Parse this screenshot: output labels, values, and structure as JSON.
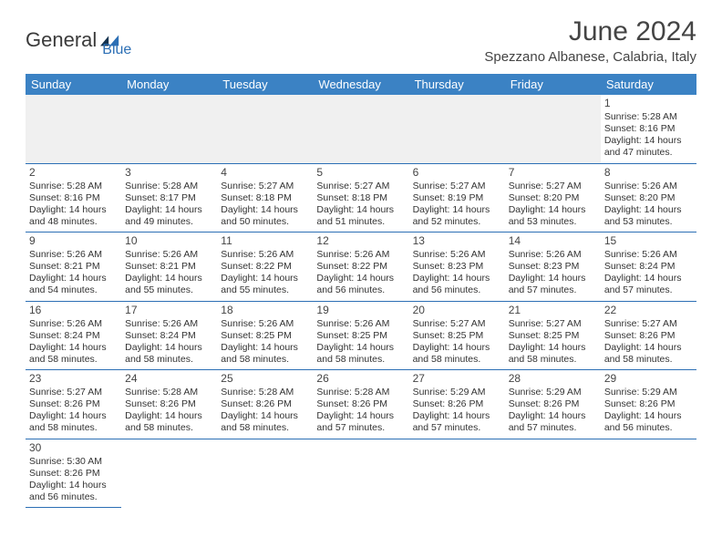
{
  "logo": {
    "text1": "General",
    "text2": "Blue"
  },
  "title": "June 2024",
  "location": "Spezzano Albanese, Calabria, Italy",
  "colors": {
    "header_bg": "#3b82c4",
    "header_text": "#ffffff",
    "border": "#2c6fb5",
    "logo_blue": "#2c6fb5",
    "text": "#333333"
  },
  "weekdays": [
    "Sunday",
    "Monday",
    "Tuesday",
    "Wednesday",
    "Thursday",
    "Friday",
    "Saturday"
  ],
  "days": {
    "1": {
      "sunrise": "5:28 AM",
      "sunset": "8:16 PM",
      "daylight": "14 hours and 47 minutes."
    },
    "2": {
      "sunrise": "5:28 AM",
      "sunset": "8:16 PM",
      "daylight": "14 hours and 48 minutes."
    },
    "3": {
      "sunrise": "5:28 AM",
      "sunset": "8:17 PM",
      "daylight": "14 hours and 49 minutes."
    },
    "4": {
      "sunrise": "5:27 AM",
      "sunset": "8:18 PM",
      "daylight": "14 hours and 50 minutes."
    },
    "5": {
      "sunrise": "5:27 AM",
      "sunset": "8:18 PM",
      "daylight": "14 hours and 51 minutes."
    },
    "6": {
      "sunrise": "5:27 AM",
      "sunset": "8:19 PM",
      "daylight": "14 hours and 52 minutes."
    },
    "7": {
      "sunrise": "5:27 AM",
      "sunset": "8:20 PM",
      "daylight": "14 hours and 53 minutes."
    },
    "8": {
      "sunrise": "5:26 AM",
      "sunset": "8:20 PM",
      "daylight": "14 hours and 53 minutes."
    },
    "9": {
      "sunrise": "5:26 AM",
      "sunset": "8:21 PM",
      "daylight": "14 hours and 54 minutes."
    },
    "10": {
      "sunrise": "5:26 AM",
      "sunset": "8:21 PM",
      "daylight": "14 hours and 55 minutes."
    },
    "11": {
      "sunrise": "5:26 AM",
      "sunset": "8:22 PM",
      "daylight": "14 hours and 55 minutes."
    },
    "12": {
      "sunrise": "5:26 AM",
      "sunset": "8:22 PM",
      "daylight": "14 hours and 56 minutes."
    },
    "13": {
      "sunrise": "5:26 AM",
      "sunset": "8:23 PM",
      "daylight": "14 hours and 56 minutes."
    },
    "14": {
      "sunrise": "5:26 AM",
      "sunset": "8:23 PM",
      "daylight": "14 hours and 57 minutes."
    },
    "15": {
      "sunrise": "5:26 AM",
      "sunset": "8:24 PM",
      "daylight": "14 hours and 57 minutes."
    },
    "16": {
      "sunrise": "5:26 AM",
      "sunset": "8:24 PM",
      "daylight": "14 hours and 58 minutes."
    },
    "17": {
      "sunrise": "5:26 AM",
      "sunset": "8:24 PM",
      "daylight": "14 hours and 58 minutes."
    },
    "18": {
      "sunrise": "5:26 AM",
      "sunset": "8:25 PM",
      "daylight": "14 hours and 58 minutes."
    },
    "19": {
      "sunrise": "5:26 AM",
      "sunset": "8:25 PM",
      "daylight": "14 hours and 58 minutes."
    },
    "20": {
      "sunrise": "5:27 AM",
      "sunset": "8:25 PM",
      "daylight": "14 hours and 58 minutes."
    },
    "21": {
      "sunrise": "5:27 AM",
      "sunset": "8:25 PM",
      "daylight": "14 hours and 58 minutes."
    },
    "22": {
      "sunrise": "5:27 AM",
      "sunset": "8:26 PM",
      "daylight": "14 hours and 58 minutes."
    },
    "23": {
      "sunrise": "5:27 AM",
      "sunset": "8:26 PM",
      "daylight": "14 hours and 58 minutes."
    },
    "24": {
      "sunrise": "5:28 AM",
      "sunset": "8:26 PM",
      "daylight": "14 hours and 58 minutes."
    },
    "25": {
      "sunrise": "5:28 AM",
      "sunset": "8:26 PM",
      "daylight": "14 hours and 58 minutes."
    },
    "26": {
      "sunrise": "5:28 AM",
      "sunset": "8:26 PM",
      "daylight": "14 hours and 57 minutes."
    },
    "27": {
      "sunrise": "5:29 AM",
      "sunset": "8:26 PM",
      "daylight": "14 hours and 57 minutes."
    },
    "28": {
      "sunrise": "5:29 AM",
      "sunset": "8:26 PM",
      "daylight": "14 hours and 57 minutes."
    },
    "29": {
      "sunrise": "5:29 AM",
      "sunset": "8:26 PM",
      "daylight": "14 hours and 56 minutes."
    },
    "30": {
      "sunrise": "5:30 AM",
      "sunset": "8:26 PM",
      "daylight": "14 hours and 56 minutes."
    }
  },
  "labels": {
    "sunrise": "Sunrise: ",
    "sunset": "Sunset: ",
    "daylight": "Daylight: "
  },
  "grid": [
    [
      null,
      null,
      null,
      null,
      null,
      null,
      1
    ],
    [
      2,
      3,
      4,
      5,
      6,
      7,
      8
    ],
    [
      9,
      10,
      11,
      12,
      13,
      14,
      15
    ],
    [
      16,
      17,
      18,
      19,
      20,
      21,
      22
    ],
    [
      23,
      24,
      25,
      26,
      27,
      28,
      29
    ],
    [
      30,
      null,
      null,
      null,
      null,
      null,
      null
    ]
  ]
}
